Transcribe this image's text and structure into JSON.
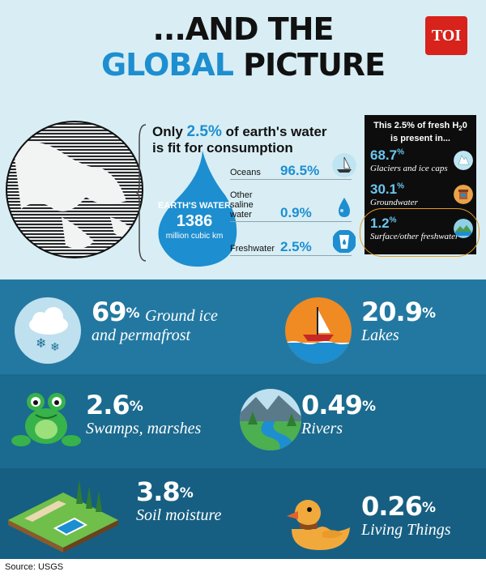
{
  "header": {
    "title_line1": "...AND THE",
    "title_line2_blue": "GLOBAL",
    "title_line2_dark": "PICTURE",
    "logo": "TOI"
  },
  "intro": {
    "headline_pre": "Only",
    "headline_pct": "2.5%",
    "headline_post": "of earth's water",
    "headline_line2": "is fit for consumption"
  },
  "drop": {
    "label1": "EARTH'S WATER",
    "value": "1386",
    "unit": "million cubic km"
  },
  "water_breakdown": [
    {
      "label": "Oceans",
      "value": "96.5%",
      "icon": "sailboat-icon"
    },
    {
      "label": "Other saline water",
      "value": "0.9%",
      "icon": "water-drop-icon"
    },
    {
      "label": "Freshwater",
      "value": "2.5%",
      "icon": "glass-icon"
    }
  ],
  "freshwater_box": {
    "title_line1": "This 2.5% of fresh H",
    "title_sub": "2",
    "title_h2o_end": "0",
    "title_line2": "is present in...",
    "items": [
      {
        "value": "68.7",
        "unit": "%",
        "desc": "Glaciers and ice caps",
        "icon": "iceberg-icon"
      },
      {
        "value": "30.1",
        "unit": "%",
        "desc": "Groundwater",
        "icon": "well-icon"
      },
      {
        "value": "1.2",
        "unit": "%",
        "desc": "Surface/other freshwater",
        "icon": "landscape-icon"
      }
    ]
  },
  "surface_breakdown": [
    {
      "value": "69",
      "unit": "%",
      "desc_line1": "Ground ice",
      "desc_line2": "and permafrost",
      "icon": "snow-cloud-icon"
    },
    {
      "value": "20.9",
      "unit": "%",
      "desc_line1": "Lakes",
      "icon": "boat-icon"
    },
    {
      "value": "2.6",
      "unit": "%",
      "desc_line1": "Swamps, marshes",
      "icon": "frog-icon"
    },
    {
      "value": "0.49",
      "unit": "%",
      "desc_line1": "Rivers",
      "icon": "river-icon"
    },
    {
      "value": "3.8",
      "unit": "%",
      "desc_line1": "Soil moisture",
      "icon": "garden-icon"
    },
    {
      "value": "0.26",
      "unit": "%",
      "desc_line1": "Living Things",
      "icon": "duck-icon"
    }
  ],
  "source": "Source: USGS",
  "colors": {
    "accent_blue": "#1d8ed0",
    "light_blue": "#6cc6ee",
    "top_bg": "#d8eef4",
    "bottom_bg": "#1e6f95",
    "logo_red": "#d8221c",
    "ring_orange": "#e39a25"
  }
}
